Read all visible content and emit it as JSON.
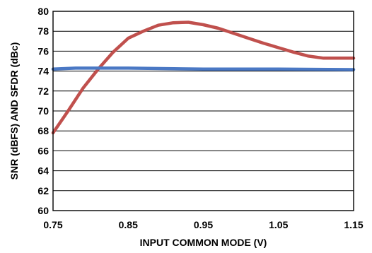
{
  "chart_data": {
    "type": "line",
    "title": "",
    "xlabel": "INPUT COMMON MODE (V)",
    "ylabel": "SNR (dBFS) AND SFDR (dBc)",
    "xlim": [
      0.75,
      1.15
    ],
    "ylim": [
      60,
      80
    ],
    "x_ticks": [
      "0.75",
      "0.85",
      "0.95",
      "1.05",
      "1.15"
    ],
    "y_ticks": [
      "60",
      "62",
      "64",
      "66",
      "68",
      "70",
      "72",
      "74",
      "76",
      "78",
      "80"
    ],
    "grid": true,
    "legend": "none",
    "series": [
      {
        "color": "#c0504d",
        "points": [
          [
            0.75,
            67.8
          ],
          [
            0.77,
            70.0
          ],
          [
            0.79,
            72.3
          ],
          [
            0.81,
            74.2
          ],
          [
            0.83,
            75.9
          ],
          [
            0.85,
            77.3
          ],
          [
            0.87,
            78.0
          ],
          [
            0.89,
            78.6
          ],
          [
            0.91,
            78.85
          ],
          [
            0.93,
            78.9
          ],
          [
            0.95,
            78.65
          ],
          [
            0.97,
            78.3
          ],
          [
            0.99,
            77.8
          ],
          [
            1.01,
            77.3
          ],
          [
            1.03,
            76.8
          ],
          [
            1.05,
            76.35
          ],
          [
            1.07,
            75.9
          ],
          [
            1.09,
            75.5
          ],
          [
            1.11,
            75.3
          ],
          [
            1.13,
            75.3
          ],
          [
            1.15,
            75.3
          ]
        ]
      },
      {
        "color": "#4a78c4",
        "points": [
          [
            0.75,
            74.2
          ],
          [
            0.78,
            74.3
          ],
          [
            0.85,
            74.3
          ],
          [
            0.95,
            74.2
          ],
          [
            1.05,
            74.2
          ],
          [
            1.15,
            74.15
          ]
        ]
      }
    ]
  }
}
